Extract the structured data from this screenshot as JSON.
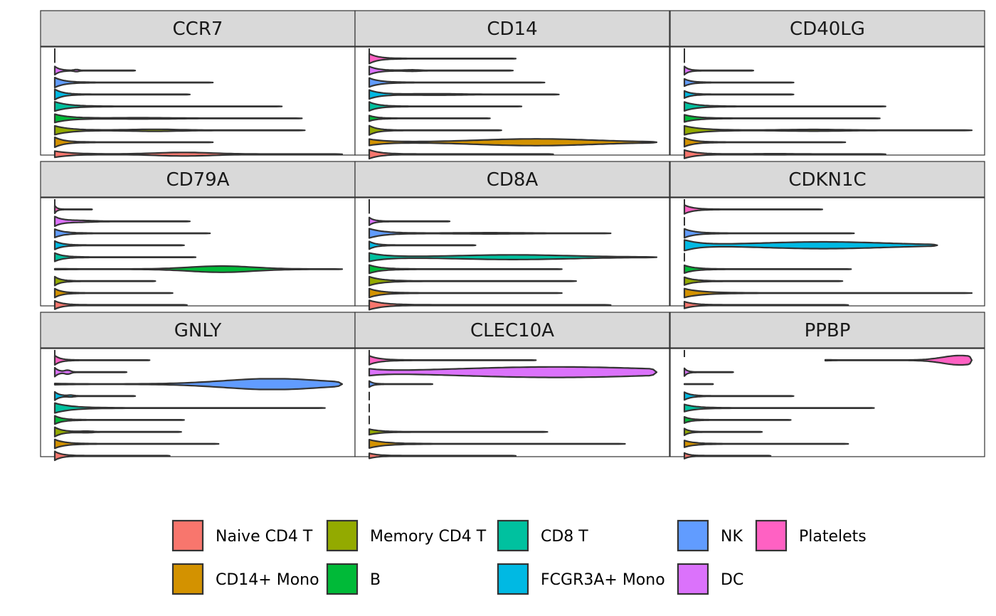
{
  "chart_data": {
    "type": "violin",
    "facets": [
      "CCR7",
      "CD14",
      "CD40LG",
      "CD79A",
      "CD8A",
      "CDKN1C",
      "GNLY",
      "CLEC10A",
      "PPBP"
    ],
    "clusters": [
      "Naive CD4 T",
      "CD14+ Mono",
      "Memory CD4 T",
      "B",
      "CD8 T",
      "FCGR3A+ Mono",
      "NK",
      "DC",
      "Platelets"
    ],
    "legend": {
      "position": "bottom",
      "order": [
        "Naive CD4 T",
        "CD14+ Mono",
        "Memory CD4 T",
        "B",
        "CD8 T",
        "FCGR3A+ Mono",
        "NK",
        "DC",
        "Platelets"
      ]
    },
    "colors": {
      "Naive CD4 T": "#F8766D",
      "CD14+ Mono": "#D39200",
      "Memory CD4 T": "#93AA00",
      "B": "#00BA38",
      "CD8 T": "#00C19F",
      "FCGR3A+ Mono": "#00B9E3",
      "NK": "#619CFF",
      "DC": "#DB72FB",
      "Platelets": "#FF61C3"
    },
    "x_scale": "free",
    "xlim_per_facet": [
      [
        0,
        1
      ],
      [
        0,
        1
      ],
      [
        0,
        1
      ],
      [
        0,
        1
      ],
      [
        0,
        1
      ],
      [
        0,
        1
      ],
      [
        0,
        1
      ],
      [
        0,
        1
      ],
      [
        0,
        1
      ]
    ],
    "violins": {
      "CCR7": {
        "Naive CD4 T": {
          "min": 0,
          "max": 1.0,
          "width0": 0.55,
          "bumps": [
            [
              0.45,
              0.3,
              0.1
            ]
          ]
        },
        "CD14+ Mono": {
          "min": 0,
          "max": 0.55,
          "width0": 0.9,
          "bumps": []
        },
        "Memory CD4 T": {
          "min": 0,
          "max": 0.87,
          "width0": 0.8,
          "bumps": [
            [
              0.4,
              0.15,
              0.1
            ]
          ]
        },
        "B": {
          "min": 0,
          "max": 0.86,
          "width0": 0.75,
          "bumps": [
            [
              0.35,
              0.08,
              0.12
            ]
          ]
        },
        "CD8 T": {
          "min": 0,
          "max": 0.79,
          "width0": 0.85,
          "bumps": []
        },
        "FCGR3A+ Mono": {
          "min": 0,
          "max": 0.47,
          "width0": 0.95,
          "bumps": []
        },
        "NK": {
          "min": 0,
          "max": 0.55,
          "width0": 0.9,
          "bumps": []
        },
        "DC": {
          "min": 0,
          "max": 0.28,
          "width0": 0.75,
          "bumps": [
            [
              0.27,
              0.15,
              0.03
            ]
          ]
        },
        "Platelets": {
          "min": 0,
          "max": 0.0,
          "width0": 0.0,
          "bumps": []
        }
      },
      "CD14": {
        "Naive CD4 T": {
          "min": 0,
          "max": 0.64,
          "width0": 0.8,
          "bumps": []
        },
        "CD14+ Mono": {
          "min": 0,
          "max": 1.0,
          "width0": 0.55,
          "bumps": [
            [
              0.58,
              0.6,
              0.2
            ]
          ]
        },
        "Memory CD4 T": {
          "min": 0,
          "max": 0.46,
          "width0": 0.85,
          "bumps": []
        },
        "B": {
          "min": 0,
          "max": 0.42,
          "width0": 0.5,
          "bumps": []
        },
        "CD8 T": {
          "min": 0,
          "max": 0.53,
          "width0": 0.8,
          "bumps": []
        },
        "FCGR3A+ Mono": {
          "min": 0,
          "max": 0.66,
          "width0": 0.8,
          "bumps": [
            [
              0.35,
              0.1,
              0.12
            ]
          ]
        },
        "NK": {
          "min": 0,
          "max": 0.61,
          "width0": 0.8,
          "bumps": []
        },
        "DC": {
          "min": 0,
          "max": 0.5,
          "width0": 0.75,
          "bumps": [
            [
              0.3,
              0.1,
              0.05
            ]
          ]
        },
        "Platelets": {
          "min": 0,
          "max": 0.51,
          "width0": 0.9,
          "bumps": []
        }
      },
      "CD40LG": {
        "Naive CD4 T": {
          "min": 0,
          "max": 0.7,
          "width0": 0.75,
          "bumps": [
            [
              0.45,
              0.06,
              0.1
            ]
          ]
        },
        "CD14+ Mono": {
          "min": 0,
          "max": 0.56,
          "width0": 0.8,
          "bumps": []
        },
        "Memory CD4 T": {
          "min": 0,
          "max": 1.0,
          "width0": 0.8,
          "bumps": [
            [
              0.45,
              0.12,
              0.1
            ]
          ]
        },
        "B": {
          "min": 0,
          "max": 0.68,
          "width0": 0.65,
          "bumps": []
        },
        "CD8 T": {
          "min": 0,
          "max": 0.7,
          "width0": 0.8,
          "bumps": []
        },
        "FCGR3A+ Mono": {
          "min": 0,
          "max": 0.38,
          "width0": 0.65,
          "bumps": []
        },
        "NK": {
          "min": 0,
          "max": 0.38,
          "width0": 0.65,
          "bumps": []
        },
        "DC": {
          "min": 0,
          "max": 0.24,
          "width0": 0.75,
          "bumps": []
        },
        "Platelets": {
          "min": 0,
          "max": 0.0,
          "width0": 0.0,
          "bumps": []
        }
      },
      "CD79A": {
        "Naive CD4 T": {
          "min": 0,
          "max": 0.46,
          "width0": 0.75,
          "bumps": []
        },
        "CD14+ Mono": {
          "min": 0,
          "max": 0.41,
          "width0": 0.8,
          "bumps": []
        },
        "Memory CD4 T": {
          "min": 0,
          "max": 0.35,
          "width0": 0.8,
          "bumps": []
        },
        "B": {
          "min": 0,
          "max": 1.0,
          "width0": 0.05,
          "bumps": [
            [
              0.58,
              0.55,
              0.11
            ]
          ]
        },
        "CD8 T": {
          "min": 0,
          "max": 0.49,
          "width0": 0.75,
          "bumps": []
        },
        "FCGR3A+ Mono": {
          "min": 0,
          "max": 0.45,
          "width0": 0.75,
          "bumps": []
        },
        "NK": {
          "min": 0,
          "max": 0.54,
          "width0": 0.75,
          "bumps": []
        },
        "DC": {
          "min": 0,
          "max": 0.47,
          "width0": 0.85,
          "bumps": [
            [
              0.18,
              0.12,
              0.1
            ]
          ]
        },
        "Platelets": {
          "min": 0,
          "max": 0.13,
          "width0": 0.7,
          "bumps": []
        }
      },
      "CD8A": {
        "Naive CD4 T": {
          "min": 0,
          "max": 0.84,
          "width0": 0.85,
          "bumps": []
        },
        "CD14+ Mono": {
          "min": 0,
          "max": 0.67,
          "width0": 0.8,
          "bumps": []
        },
        "Memory CD4 T": {
          "min": 0,
          "max": 0.72,
          "width0": 0.8,
          "bumps": []
        },
        "B": {
          "min": 0,
          "max": 0.67,
          "width0": 0.75,
          "bumps": []
        },
        "CD8 T": {
          "min": 0,
          "max": 1.0,
          "width0": 0.75,
          "bumps": [
            [
              0.5,
              0.4,
              0.2
            ]
          ]
        },
        "FCGR3A+ Mono": {
          "min": 0,
          "max": 0.37,
          "width0": 0.7,
          "bumps": []
        },
        "NK": {
          "min": 0,
          "max": 0.84,
          "width0": 0.85,
          "bumps": [
            [
              0.5,
              0.08,
              0.12
            ]
          ]
        },
        "DC": {
          "min": 0,
          "max": 0.28,
          "width0": 0.7,
          "bumps": []
        },
        "Platelets": {
          "min": 0,
          "max": 0.0,
          "width0": 0.0,
          "bumps": []
        }
      },
      "CDKN1C": {
        "Naive CD4 T": {
          "min": 0,
          "max": 0.57,
          "width0": 0.6,
          "bumps": []
        },
        "CD14+ Mono": {
          "min": 0,
          "max": 1.0,
          "width0": 0.8,
          "bumps": []
        },
        "Memory CD4 T": {
          "min": 0,
          "max": 0.55,
          "width0": 0.7,
          "bumps": []
        },
        "B": {
          "min": 0,
          "max": 0.58,
          "width0": 0.7,
          "bumps": []
        },
        "CD8 T": {
          "min": 0,
          "max": 0.0,
          "width0": 0.0,
          "bumps": []
        },
        "FCGR3A+ Mono": {
          "min": 0,
          "max": 0.88,
          "width0": 0.95,
          "bumps": [
            [
              0.55,
              0.6,
              0.25
            ]
          ]
        },
        "NK": {
          "min": 0,
          "max": 0.59,
          "width0": 0.8,
          "bumps": []
        },
        "DC": {
          "min": 0,
          "max": 0.0,
          "width0": 0.0,
          "bumps": []
        },
        "Platelets": {
          "min": 0,
          "max": 0.48,
          "width0": 0.8,
          "bumps": []
        }
      },
      "GNLY": {
        "Naive CD4 T": {
          "min": 0,
          "max": 0.4,
          "width0": 0.8,
          "bumps": []
        },
        "CD14+ Mono": {
          "min": 0,
          "max": 0.57,
          "width0": 0.8,
          "bumps": []
        },
        "Memory CD4 T": {
          "min": 0,
          "max": 0.44,
          "width0": 0.85,
          "bumps": [
            [
              0.25,
              0.1,
              0.05
            ]
          ]
        },
        "B": {
          "min": 0,
          "max": 0.45,
          "width0": 0.75,
          "bumps": []
        },
        "CD8 T": {
          "min": 0,
          "max": 0.94,
          "width0": 0.9,
          "bumps": []
        },
        "FCGR3A+ Mono": {
          "min": 0,
          "max": 0.28,
          "width0": 0.75,
          "bumps": [
            [
              0.2,
              0.12,
              0.04
            ]
          ]
        },
        "NK": {
          "min": 0,
          "max": 1.0,
          "width0": 0.08,
          "bumps": [
            [
              0.76,
              1.0,
              0.17
            ]
          ]
        },
        "DC": {
          "min": 0,
          "max": 0.25,
          "width0": 0.8,
          "bumps": [
            [
              0.18,
              0.3,
              0.04
            ]
          ]
        },
        "Platelets": {
          "min": 0,
          "max": 0.33,
          "width0": 0.85,
          "bumps": []
        }
      },
      "CLEC10A": {
        "Naive CD4 T": {
          "min": 0,
          "max": 0.51,
          "width0": 0.45,
          "bumps": []
        },
        "CD14+ Mono": {
          "min": 0,
          "max": 0.89,
          "width0": 0.75,
          "bumps": []
        },
        "Memory CD4 T": {
          "min": 0,
          "max": 0.62,
          "width0": 0.5,
          "bumps": []
        },
        "B": {
          "min": 0,
          "max": 0.0,
          "width0": 0.0,
          "bumps": []
        },
        "CD8 T": {
          "min": 0,
          "max": 0.0,
          "width0": 0.0,
          "bumps": []
        },
        "FCGR3A+ Mono": {
          "min": 0,
          "max": 0.0,
          "width0": 0.0,
          "bumps": []
        },
        "NK": {
          "min": 0,
          "max": 0.22,
          "width0": 0.55,
          "bumps": []
        },
        "DC": {
          "min": 0,
          "max": 1.0,
          "width0": 0.45,
          "bumps": [
            [
              0.65,
              0.95,
              0.35
            ]
          ]
        },
        "Platelets": {
          "min": 0,
          "max": 0.58,
          "width0": 0.8,
          "bumps": []
        }
      },
      "PPBP": {
        "Naive CD4 T": {
          "min": 0,
          "max": 0.3,
          "width0": 0.5,
          "bumps": []
        },
        "CD14+ Mono": {
          "min": 0,
          "max": 0.57,
          "width0": 0.6,
          "bumps": []
        },
        "Memory CD4 T": {
          "min": 0,
          "max": 0.27,
          "width0": 0.6,
          "bumps": []
        },
        "B": {
          "min": 0,
          "max": 0.37,
          "width0": 0.55,
          "bumps": []
        },
        "CD8 T": {
          "min": 0,
          "max": 0.66,
          "width0": 0.65,
          "bumps": []
        },
        "FCGR3A+ Mono": {
          "min": 0,
          "max": 0.38,
          "width0": 0.7,
          "bumps": []
        },
        "NK": {
          "min": 0,
          "max": 0.1,
          "width0": 0.0,
          "bumps": []
        },
        "DC": {
          "min": 0,
          "max": 0.17,
          "width0": 0.7,
          "bumps": []
        },
        "Platelets": {
          "min": 0.49,
          "max": 1.0,
          "width0": 0.05,
          "bumps": [
            [
              0.92,
              0.85,
              0.12
            ]
          ]
        }
      }
    }
  }
}
